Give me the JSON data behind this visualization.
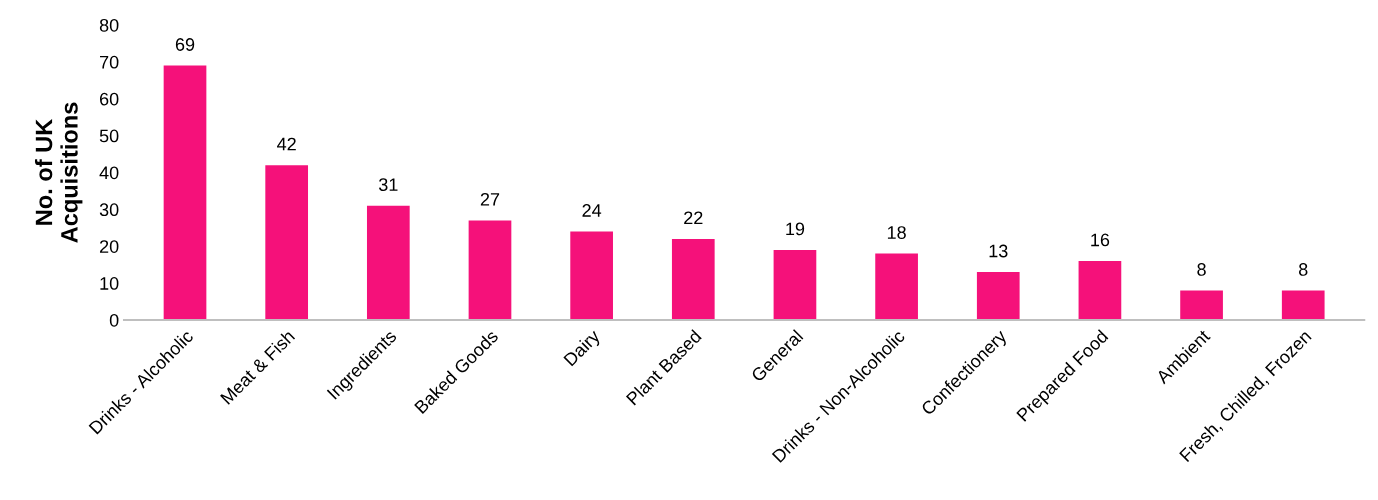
{
  "chart_data": {
    "type": "bar",
    "ylabel": "No. of UK\nAcquisitions",
    "categories": [
      "Drinks - Alcoholic",
      "Meat & Fish",
      "Ingredients",
      "Baked Goods",
      "Dairy",
      "Plant Based",
      "General",
      "Drinks - Non-Alcoholic",
      "Confectionery",
      "Prepared Food",
      "Ambient",
      "Fresh, Chilled, Frozen"
    ],
    "values": [
      69,
      42,
      31,
      27,
      24,
      22,
      19,
      18,
      13,
      16,
      8,
      8
    ],
    "color": "#f5117a",
    "ylim": [
      0,
      80
    ],
    "yticks": [
      0,
      10,
      20,
      30,
      40,
      50,
      60,
      70,
      80
    ],
    "data_labels": true,
    "grid": false,
    "legend": false
  }
}
